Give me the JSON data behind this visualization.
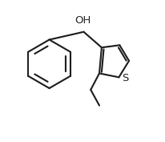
{
  "bg_color": "#ffffff",
  "line_color": "#2a2a2a",
  "line_width": 1.6,
  "font_size_oh": 9.5,
  "font_size_s": 9.5,
  "atoms": {
    "OH_label": "OH",
    "S_label": "S"
  },
  "xlim": [
    0,
    10
  ],
  "ylim": [
    0,
    9
  ]
}
